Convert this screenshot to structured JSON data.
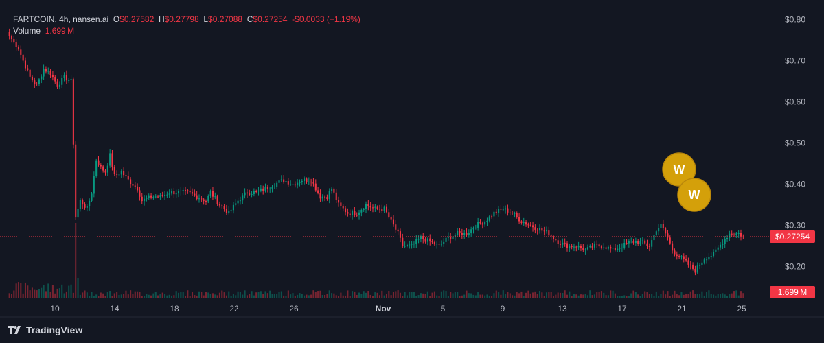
{
  "legend": {
    "symbol": "FARTCOIN, 4h, nansen.ai",
    "open_label": "O",
    "open": "$0.27582",
    "high_label": "H",
    "high": "$0.27798",
    "low_label": "L",
    "low": "$0.27088",
    "close_label": "C",
    "close": "$0.27254",
    "change": "-$0.0033 (−1.19%)",
    "volume_label": "Volume",
    "volume": "1.699 M"
  },
  "price_badge": "$0.27254",
  "volume_badge": "1.699 M",
  "footer": {
    "brand": "TradingView",
    "logo_icon": "tradingview-logo-icon"
  },
  "markers": [
    {
      "label": "W",
      "icon": "coin-marker-icon"
    },
    {
      "label": "W",
      "icon": "coin-marker-icon"
    }
  ],
  "chart_data": {
    "type": "candlestick",
    "interval": "4h",
    "yaxis_position": "right",
    "ylim": [
      0.14,
      0.8
    ],
    "y_ticks": [
      "$0.80",
      "$0.70",
      "$0.60",
      "$0.50",
      "$0.40",
      "$0.30",
      "$0.20"
    ],
    "y_tick_values": [
      0.8,
      0.7,
      0.6,
      0.5,
      0.4,
      0.3,
      0.2
    ],
    "x_ticks": [
      "10",
      "14",
      "18",
      "22",
      "26",
      "Nov",
      "5",
      "9",
      "13",
      "17",
      "21",
      "25"
    ],
    "last_price": 0.27254,
    "colors": {
      "up": "#089981",
      "down": "#f23645",
      "background": "#131722",
      "marker": "#d4a00a"
    },
    "anchors": [
      [
        0,
        0.76
      ],
      [
        4,
        0.73
      ],
      [
        6,
        0.7
      ],
      [
        9,
        0.66
      ],
      [
        12,
        0.64
      ],
      [
        15,
        0.68
      ],
      [
        18,
        0.67
      ],
      [
        21,
        0.64
      ],
      [
        24,
        0.66
      ],
      [
        27,
        0.65
      ],
      [
        28,
        0.5
      ],
      [
        29,
        0.32
      ],
      [
        31,
        0.36
      ],
      [
        34,
        0.34
      ],
      [
        36,
        0.38
      ],
      [
        38,
        0.46
      ],
      [
        40,
        0.44
      ],
      [
        42,
        0.43
      ],
      [
        44,
        0.47
      ],
      [
        46,
        0.42
      ],
      [
        49,
        0.43
      ],
      [
        52,
        0.41
      ],
      [
        56,
        0.39
      ],
      [
        58,
        0.36
      ],
      [
        62,
        0.37
      ],
      [
        66,
        0.37
      ],
      [
        70,
        0.38
      ],
      [
        74,
        0.38
      ],
      [
        78,
        0.38
      ],
      [
        82,
        0.37
      ],
      [
        86,
        0.36
      ],
      [
        88,
        0.38
      ],
      [
        92,
        0.35
      ],
      [
        96,
        0.33
      ],
      [
        100,
        0.36
      ],
      [
        104,
        0.38
      ],
      [
        108,
        0.38
      ],
      [
        112,
        0.39
      ],
      [
        116,
        0.4
      ],
      [
        120,
        0.41
      ],
      [
        124,
        0.4
      ],
      [
        128,
        0.41
      ],
      [
        132,
        0.41
      ],
      [
        136,
        0.37
      ],
      [
        139,
        0.37
      ],
      [
        141,
        0.39
      ],
      [
        144,
        0.35
      ],
      [
        148,
        0.33
      ],
      [
        152,
        0.33
      ],
      [
        156,
        0.35
      ],
      [
        160,
        0.34
      ],
      [
        164,
        0.34
      ],
      [
        166,
        0.32
      ],
      [
        168,
        0.3
      ],
      [
        170,
        0.28
      ],
      [
        172,
        0.25
      ],
      [
        176,
        0.25
      ],
      [
        180,
        0.27
      ],
      [
        184,
        0.26
      ],
      [
        188,
        0.25
      ],
      [
        192,
        0.27
      ],
      [
        196,
        0.28
      ],
      [
        200,
        0.28
      ],
      [
        204,
        0.3
      ],
      [
        208,
        0.31
      ],
      [
        212,
        0.33
      ],
      [
        216,
        0.34
      ],
      [
        220,
        0.33
      ],
      [
        224,
        0.31
      ],
      [
        228,
        0.3
      ],
      [
        232,
        0.29
      ],
      [
        236,
        0.28
      ],
      [
        240,
        0.26
      ],
      [
        244,
        0.25
      ],
      [
        248,
        0.25
      ],
      [
        252,
        0.24
      ],
      [
        256,
        0.25
      ],
      [
        260,
        0.25
      ],
      [
        264,
        0.24
      ],
      [
        268,
        0.25
      ],
      [
        272,
        0.26
      ],
      [
        276,
        0.26
      ],
      [
        280,
        0.25
      ],
      [
        283,
        0.29
      ],
      [
        285,
        0.3
      ],
      [
        288,
        0.27
      ],
      [
        290,
        0.24
      ],
      [
        294,
        0.22
      ],
      [
        298,
        0.2
      ],
      [
        300,
        0.19
      ],
      [
        304,
        0.22
      ],
      [
        308,
        0.23
      ],
      [
        312,
        0.26
      ],
      [
        315,
        0.28
      ],
      [
        319,
        0.28
      ],
      [
        321,
        0.27254
      ]
    ],
    "volume_max": "1.699 M",
    "volume_spike_index": 29
  }
}
